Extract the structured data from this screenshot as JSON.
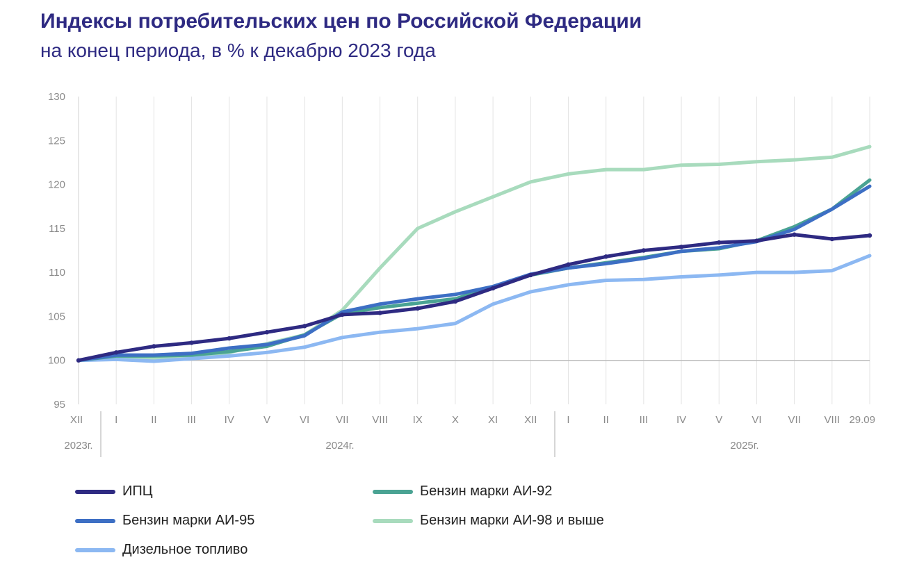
{
  "title": "Индексы потребительских цен по Российской Федерации",
  "subtitle": "на конец периода, в % к декабрю 2023 года",
  "chart_data": {
    "type": "line",
    "x": [
      "XII",
      "I",
      "II",
      "III",
      "IV",
      "V",
      "VI",
      "VII",
      "VIII",
      "IX",
      "X",
      "XI",
      "XII",
      "I",
      "II",
      "III",
      "IV",
      "V",
      "VI",
      "VII",
      "VIII",
      "29.09"
    ],
    "year_labels": [
      "2023г.",
      "2024г.",
      "2025г."
    ],
    "ylim": [
      95,
      130
    ],
    "yticks": [
      95,
      100,
      105,
      110,
      115,
      120,
      125,
      130
    ],
    "grid": "vertical",
    "legend_placement": "bottom",
    "series": [
      {
        "name": "ИПЦ",
        "color": "#2e2a82",
        "values": [
          100,
          100.9,
          101.6,
          102.0,
          102.5,
          103.2,
          103.9,
          105.2,
          105.4,
          105.9,
          106.7,
          108.2,
          109.7,
          110.9,
          111.8,
          112.5,
          112.9,
          113.4,
          113.6,
          114.3,
          113.8,
          114.2
        ]
      },
      {
        "name": "Бензин марки АИ-92",
        "color": "#4aa393",
        "values": [
          100,
          100.5,
          100.5,
          100.6,
          101.0,
          101.6,
          102.9,
          105.3,
          106.0,
          106.5,
          107.0,
          108.3,
          109.7,
          110.5,
          111.1,
          111.7,
          112.4,
          112.7,
          113.6,
          115.2,
          117.2,
          120.5
        ]
      },
      {
        "name": "Бензин марки АИ-95",
        "color": "#3d6fc4",
        "values": [
          100,
          100.6,
          100.6,
          100.8,
          101.4,
          101.8,
          102.8,
          105.5,
          106.4,
          107.0,
          107.5,
          108.4,
          109.8,
          110.5,
          111.0,
          111.6,
          112.4,
          112.8,
          113.5,
          114.9,
          117.2,
          119.8
        ]
      },
      {
        "name": "Бензин марки АИ-98 и выше",
        "color": "#a8dbbd",
        "values": [
          100,
          100.2,
          100.1,
          100.3,
          100.9,
          101.9,
          102.9,
          105.7,
          110.5,
          115.0,
          116.9,
          118.6,
          120.3,
          121.2,
          121.7,
          121.7,
          122.2,
          122.3,
          122.6,
          122.8,
          123.1,
          124.3
        ]
      },
      {
        "name": "Дизельное топливо",
        "color": "#8cb8f2",
        "values": [
          100,
          100.1,
          99.9,
          100.2,
          100.5,
          100.9,
          101.5,
          102.6,
          103.2,
          103.6,
          104.2,
          106.4,
          107.8,
          108.6,
          109.1,
          109.2,
          109.5,
          109.7,
          110.0,
          110.0,
          110.2,
          111.9
        ]
      }
    ]
  }
}
